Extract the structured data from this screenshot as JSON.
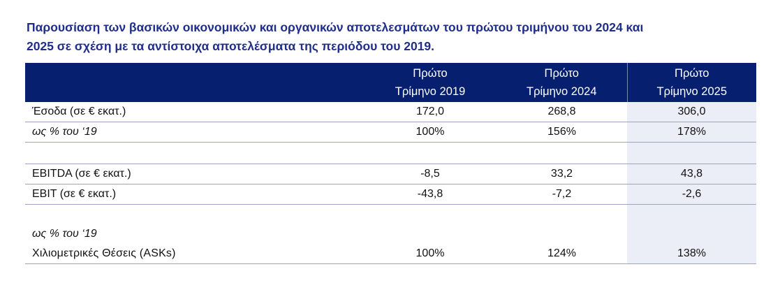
{
  "heading": {
    "line1": "Παρουσίαση των βασικών οικονομικών και οργανικών αποτελεσμάτων του πρώτου τριμήνου του 2024 και",
    "line2": "2025 σε σχέση με τα αντίστοιχα αποτελέσματα της περιόδου του 2019."
  },
  "table": {
    "columns": [
      {
        "line1": "Πρώτο",
        "line2": "Τρίμηνο 2019"
      },
      {
        "line1": "Πρώτο",
        "line2": "Τρίμηνο 2024"
      },
      {
        "line1": "Πρώτο",
        "line2": "Τρίμηνο 2025"
      }
    ],
    "rows": {
      "revenue": {
        "label": "Έσοδα (σε € εκατ.)",
        "q1_2019": "172,0",
        "q1_2024": "268,8",
        "q1_2025": "306,0"
      },
      "revenue_pct": {
        "label": "ως % του ‘19",
        "q1_2019": "100%",
        "q1_2024": "156%",
        "q1_2025": "178%"
      },
      "ebitda": {
        "label": "EBITDA (σε € εκατ.)",
        "q1_2019": "-8,5",
        "q1_2024": "33,2",
        "q1_2025": "43,8"
      },
      "ebit": {
        "label": "EBIT (σε € εκατ.)",
        "q1_2019": "-43,8",
        "q1_2024": "-7,2",
        "q1_2025": "-2,6"
      },
      "asks_pct_heading": {
        "label": "ως % του ‘19"
      },
      "asks": {
        "label": "Χιλιομετρικές Θέσεις (ASKs)",
        "q1_2019": "100%",
        "q1_2024": "124%",
        "q1_2025": "138%"
      }
    }
  },
  "colors": {
    "heading_text": "#1f2e8a",
    "header_bg": "#06206f",
    "highlight_col_bg": "#eceef7"
  }
}
